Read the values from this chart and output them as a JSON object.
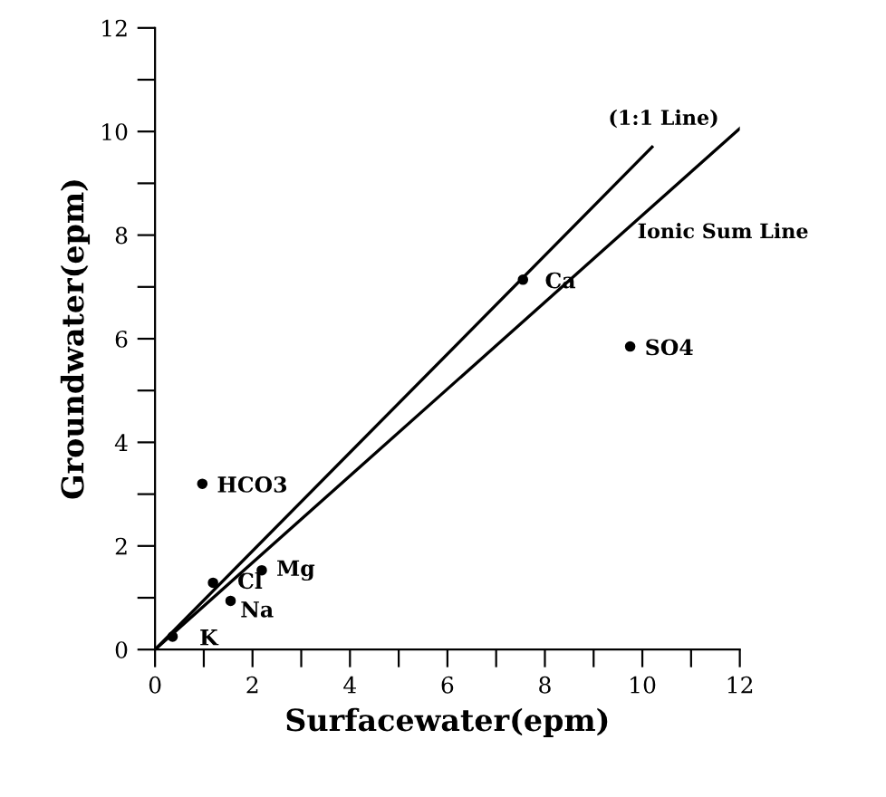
{
  "chart_data": {
    "type": "scatter",
    "xlabel": "Surfacewater(epm)",
    "ylabel": "Groundwater(epm)",
    "xlim": [
      0,
      12
    ],
    "ylim": [
      0,
      12
    ],
    "xticks": [
      0,
      {
        "value": 1,
        "label": null
      },
      2,
      {
        "value": 3,
        "label": null
      },
      4,
      {
        "value": 5,
        "label": null
      },
      6,
      {
        "value": 7,
        "label": null
      },
      8,
      {
        "value": 9,
        "label": null
      },
      10,
      {
        "value": 11,
        "label": null
      },
      12
    ],
    "yticks": [
      0,
      {
        "value": 1,
        "label": null
      },
      2,
      {
        "value": 3,
        "label": null
      },
      4,
      {
        "value": 5,
        "label": null
      },
      6,
      {
        "value": 7,
        "label": null
      },
      8,
      {
        "value": 9,
        "label": null
      },
      10,
      {
        "value": 11,
        "label": null
      },
      12
    ],
    "grid": false,
    "legend": false,
    "series": [
      {
        "marker": "circle",
        "color": "#000000",
        "x": [
          0.36,
          1.19,
          1.55,
          2.19,
          0.97,
          7.55,
          9.75
        ],
        "values": [
          0.25,
          1.29,
          0.94,
          1.53,
          3.2,
          7.14,
          5.85
        ],
        "value_labels": [
          "K",
          "Cl",
          "Na",
          "Mg",
          "HCO3",
          "Ca",
          "SO4"
        ]
      },
      {
        "type": "line",
        "marker": "none",
        "name": "(1:1 Line)",
        "color": "#000000",
        "x": [
          0,
          10.2
        ],
        "values": [
          0,
          9.7
        ]
      },
      {
        "type": "line",
        "marker": "none",
        "name": "Ionic Sum Line",
        "color": "#000000",
        "x": [
          0,
          12
        ],
        "values": [
          0,
          10.06
        ]
      }
    ]
  }
}
